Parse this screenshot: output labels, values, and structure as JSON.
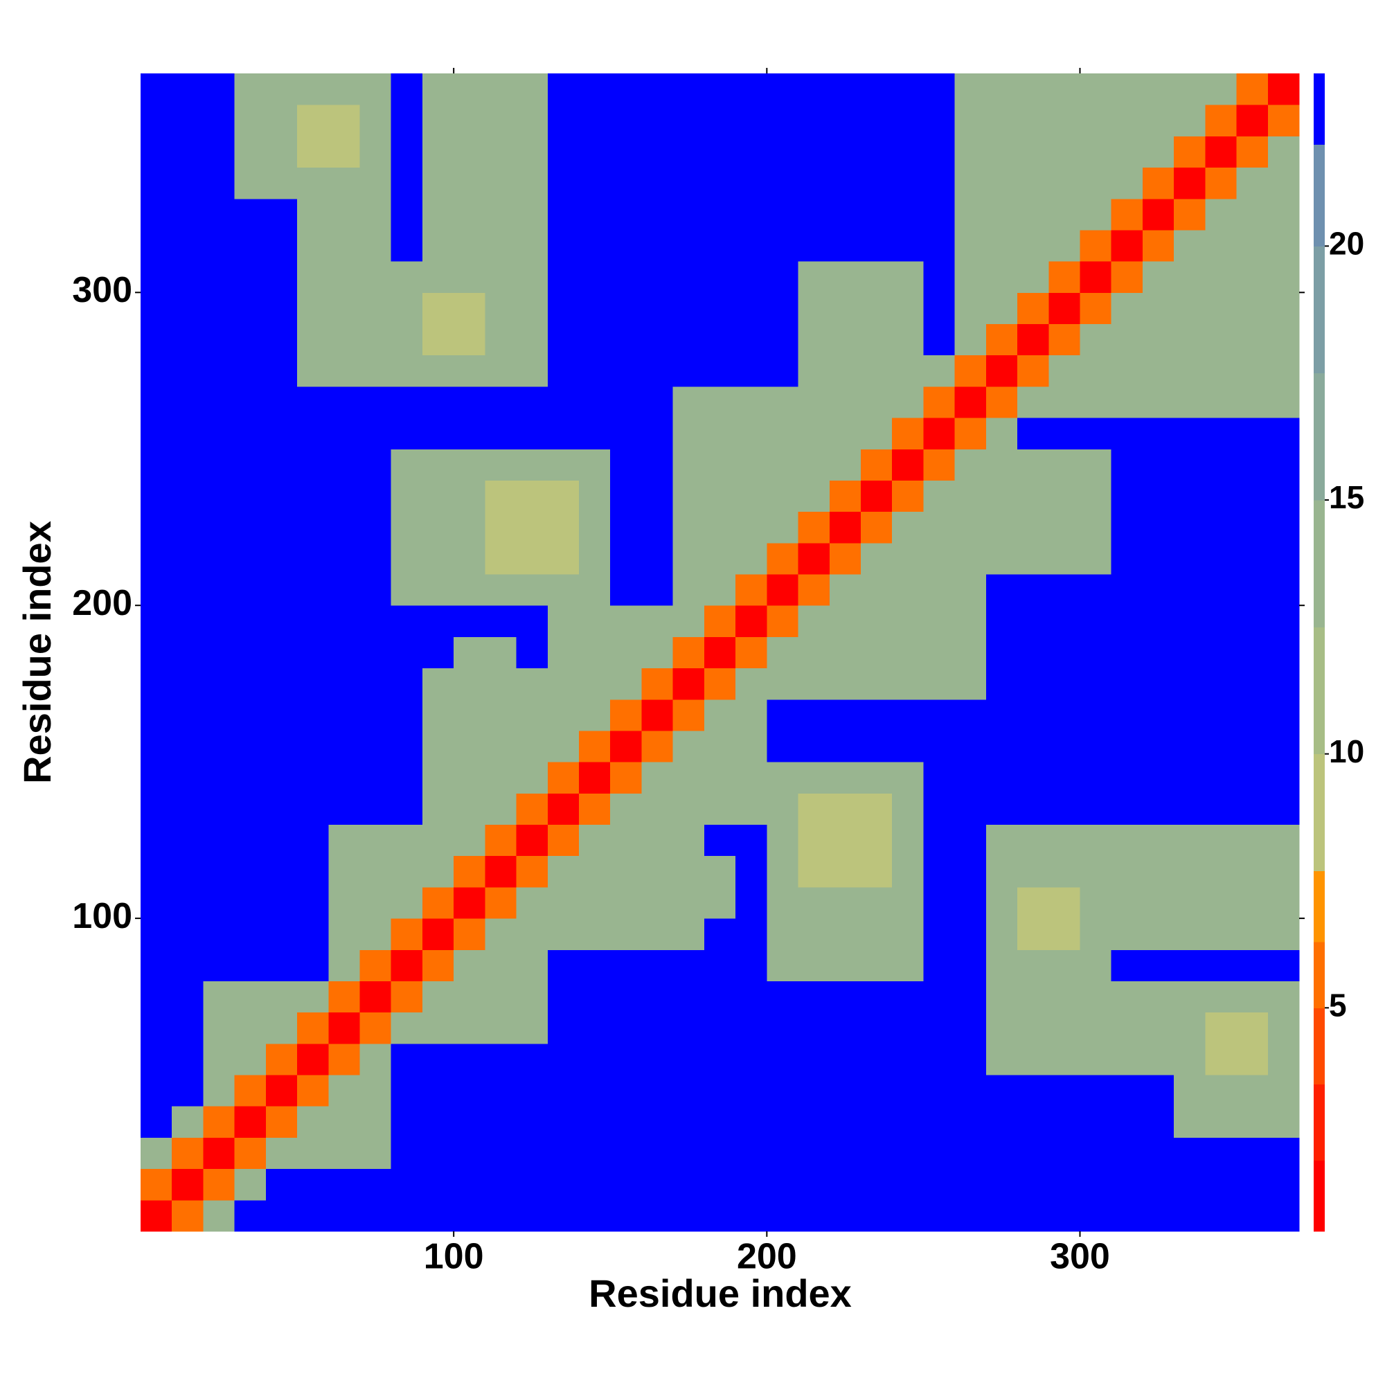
{
  "chart_data": {
    "type": "heatmap",
    "x_label": "Residue index",
    "y_label": "Residue index",
    "xlim": [
      0,
      370
    ],
    "ylim": [
      0,
      370
    ],
    "xticks": [
      100,
      200,
      300
    ],
    "yticks": [
      100,
      200,
      300
    ],
    "bin_edges": [
      0,
      10,
      20,
      30,
      40,
      50,
      60,
      70,
      80,
      90,
      100,
      110,
      120,
      130,
      140,
      150,
      160,
      170,
      180,
      190,
      200,
      210,
      220,
      230,
      240,
      250,
      260,
      270,
      280,
      290,
      300,
      310,
      320,
      330,
      340,
      350,
      360,
      370
    ],
    "z": [
      [
        1,
        6,
        13,
        23,
        23,
        23,
        23,
        23,
        23,
        23,
        23,
        23,
        23,
        23,
        23,
        23,
        23,
        23,
        23,
        23,
        23,
        23,
        23,
        23,
        23,
        23,
        23,
        23,
        23,
        23,
        23,
        23,
        23,
        23,
        23,
        23,
        23
      ],
      [
        6,
        1,
        6,
        13,
        23,
        23,
        23,
        23,
        23,
        23,
        23,
        23,
        23,
        23,
        23,
        23,
        23,
        23,
        23,
        23,
        23,
        23,
        23,
        23,
        23,
        23,
        23,
        23,
        23,
        23,
        23,
        23,
        23,
        23,
        23,
        23,
        23
      ],
      [
        13,
        6,
        1,
        6,
        13,
        13,
        13,
        13,
        23,
        23,
        23,
        23,
        23,
        23,
        23,
        23,
        23,
        23,
        23,
        23,
        23,
        23,
        23,
        23,
        23,
        23,
        23,
        23,
        23,
        23,
        23,
        23,
        23,
        23,
        23,
        23,
        23
      ],
      [
        23,
        13,
        6,
        1,
        6,
        13,
        13,
        13,
        23,
        23,
        23,
        23,
        23,
        23,
        23,
        23,
        23,
        23,
        23,
        23,
        23,
        23,
        23,
        23,
        23,
        23,
        23,
        23,
        23,
        23,
        23,
        23,
        23,
        13,
        13,
        13,
        13
      ],
      [
        23,
        23,
        13,
        6,
        1,
        6,
        13,
        13,
        23,
        23,
        23,
        23,
        23,
        23,
        23,
        23,
        23,
        23,
        23,
        23,
        23,
        23,
        23,
        23,
        23,
        23,
        23,
        23,
        23,
        23,
        23,
        23,
        23,
        13,
        13,
        13,
        13
      ],
      [
        23,
        23,
        13,
        13,
        6,
        1,
        6,
        13,
        23,
        23,
        23,
        23,
        23,
        23,
        23,
        23,
        23,
        23,
        23,
        23,
        23,
        23,
        23,
        23,
        23,
        23,
        23,
        13,
        13,
        13,
        13,
        13,
        13,
        13,
        9,
        9,
        13
      ],
      [
        23,
        23,
        13,
        13,
        13,
        6,
        1,
        6,
        13,
        13,
        13,
        13,
        13,
        23,
        23,
        23,
        23,
        23,
        23,
        23,
        23,
        23,
        23,
        23,
        23,
        23,
        23,
        13,
        13,
        13,
        13,
        13,
        13,
        13,
        9,
        9,
        13
      ],
      [
        23,
        23,
        13,
        13,
        13,
        13,
        6,
        1,
        6,
        13,
        13,
        13,
        13,
        23,
        23,
        23,
        23,
        23,
        23,
        23,
        23,
        23,
        23,
        23,
        23,
        23,
        23,
        13,
        13,
        13,
        13,
        13,
        13,
        13,
        13,
        13,
        13
      ],
      [
        23,
        23,
        23,
        23,
        23,
        23,
        13,
        6,
        1,
        6,
        13,
        13,
        13,
        23,
        23,
        23,
        23,
        23,
        23,
        23,
        13,
        13,
        13,
        13,
        13,
        23,
        23,
        13,
        13,
        13,
        13,
        23,
        23,
        23,
        23,
        23,
        23
      ],
      [
        23,
        23,
        23,
        23,
        23,
        23,
        13,
        13,
        6,
        1,
        6,
        13,
        13,
        13,
        13,
        13,
        13,
        13,
        23,
        23,
        13,
        13,
        13,
        13,
        13,
        23,
        23,
        13,
        9,
        9,
        13,
        13,
        13,
        13,
        13,
        13,
        13
      ],
      [
        23,
        23,
        23,
        23,
        23,
        23,
        13,
        13,
        13,
        6,
        1,
        6,
        13,
        13,
        13,
        13,
        13,
        13,
        13,
        23,
        13,
        13,
        13,
        13,
        13,
        23,
        23,
        13,
        9,
        9,
        13,
        13,
        13,
        13,
        13,
        13,
        13
      ],
      [
        23,
        23,
        23,
        23,
        23,
        23,
        13,
        13,
        13,
        13,
        6,
        1,
        6,
        13,
        13,
        13,
        13,
        13,
        13,
        23,
        13,
        9,
        9,
        9,
        13,
        23,
        23,
        13,
        13,
        13,
        13,
        13,
        13,
        13,
        13,
        13,
        13
      ],
      [
        23,
        23,
        23,
        23,
        23,
        23,
        13,
        13,
        13,
        13,
        13,
        6,
        1,
        6,
        13,
        13,
        13,
        13,
        23,
        23,
        13,
        9,
        9,
        9,
        13,
        23,
        23,
        13,
        13,
        13,
        13,
        13,
        13,
        13,
        13,
        13,
        13
      ],
      [
        23,
        23,
        23,
        23,
        23,
        23,
        23,
        23,
        23,
        13,
        13,
        13,
        6,
        1,
        6,
        13,
        13,
        13,
        13,
        13,
        13,
        9,
        9,
        9,
        13,
        23,
        23,
        23,
        23,
        23,
        23,
        23,
        23,
        23,
        23,
        23,
        23
      ],
      [
        23,
        23,
        23,
        23,
        23,
        23,
        23,
        23,
        23,
        13,
        13,
        13,
        13,
        6,
        1,
        6,
        13,
        13,
        13,
        13,
        13,
        13,
        13,
        13,
        13,
        23,
        23,
        23,
        23,
        23,
        23,
        23,
        23,
        23,
        23,
        23,
        23
      ],
      [
        23,
        23,
        23,
        23,
        23,
        23,
        23,
        23,
        23,
        13,
        13,
        13,
        13,
        13,
        6,
        1,
        6,
        13,
        13,
        13,
        23,
        23,
        23,
        23,
        23,
        23,
        23,
        23,
        23,
        23,
        23,
        23,
        23,
        23,
        23,
        23,
        23
      ],
      [
        23,
        23,
        23,
        23,
        23,
        23,
        23,
        23,
        23,
        13,
        13,
        13,
        13,
        13,
        13,
        6,
        1,
        6,
        13,
        13,
        23,
        23,
        23,
        23,
        23,
        23,
        23,
        23,
        23,
        23,
        23,
        23,
        23,
        23,
        23,
        23,
        23
      ],
      [
        23,
        23,
        23,
        23,
        23,
        23,
        23,
        23,
        23,
        13,
        13,
        13,
        13,
        13,
        13,
        13,
        6,
        1,
        6,
        13,
        13,
        13,
        13,
        13,
        13,
        13,
        13,
        23,
        23,
        23,
        23,
        23,
        23,
        23,
        23,
        23,
        23
      ],
      [
        23,
        23,
        23,
        23,
        23,
        23,
        23,
        23,
        23,
        23,
        13,
        13,
        23,
        13,
        13,
        13,
        13,
        6,
        1,
        6,
        13,
        13,
        13,
        13,
        13,
        13,
        13,
        23,
        23,
        23,
        23,
        23,
        23,
        23,
        23,
        23,
        23
      ],
      [
        23,
        23,
        23,
        23,
        23,
        23,
        23,
        23,
        23,
        23,
        23,
        23,
        23,
        13,
        13,
        13,
        13,
        13,
        6,
        1,
        6,
        13,
        13,
        13,
        13,
        13,
        13,
        23,
        23,
        23,
        23,
        23,
        23,
        23,
        23,
        23,
        23
      ],
      [
        23,
        23,
        23,
        23,
        23,
        23,
        23,
        23,
        13,
        13,
        13,
        13,
        13,
        13,
        13,
        23,
        23,
        13,
        13,
        6,
        1,
        6,
        13,
        13,
        13,
        13,
        13,
        23,
        23,
        23,
        23,
        23,
        23,
        23,
        23,
        23,
        23
      ],
      [
        23,
        23,
        23,
        23,
        23,
        23,
        23,
        23,
        13,
        13,
        13,
        9,
        9,
        9,
        13,
        23,
        23,
        13,
        13,
        13,
        6,
        1,
        6,
        13,
        13,
        13,
        13,
        13,
        13,
        13,
        13,
        23,
        23,
        23,
        23,
        23,
        23
      ],
      [
        23,
        23,
        23,
        23,
        23,
        23,
        23,
        23,
        13,
        13,
        13,
        9,
        9,
        9,
        13,
        23,
        23,
        13,
        13,
        13,
        13,
        6,
        1,
        6,
        13,
        13,
        13,
        13,
        13,
        13,
        13,
        23,
        23,
        23,
        23,
        23,
        23
      ],
      [
        23,
        23,
        23,
        23,
        23,
        23,
        23,
        23,
        13,
        13,
        13,
        9,
        9,
        9,
        13,
        23,
        23,
        13,
        13,
        13,
        13,
        13,
        6,
        1,
        6,
        13,
        13,
        13,
        13,
        13,
        13,
        23,
        23,
        23,
        23,
        23,
        23
      ],
      [
        23,
        23,
        23,
        23,
        23,
        23,
        23,
        23,
        13,
        13,
        13,
        13,
        13,
        13,
        13,
        23,
        23,
        13,
        13,
        13,
        13,
        13,
        13,
        6,
        1,
        6,
        13,
        13,
        13,
        13,
        13,
        23,
        23,
        23,
        23,
        23,
        23
      ],
      [
        23,
        23,
        23,
        23,
        23,
        23,
        23,
        23,
        23,
        23,
        23,
        23,
        23,
        23,
        23,
        23,
        23,
        13,
        13,
        13,
        13,
        13,
        13,
        13,
        6,
        1,
        6,
        13,
        23,
        23,
        23,
        23,
        23,
        23,
        23,
        23,
        23
      ],
      [
        23,
        23,
        23,
        23,
        23,
        23,
        23,
        23,
        23,
        23,
        23,
        23,
        23,
        23,
        23,
        23,
        23,
        13,
        13,
        13,
        13,
        13,
        13,
        13,
        13,
        6,
        1,
        6,
        13,
        13,
        13,
        13,
        13,
        13,
        13,
        13,
        13
      ],
      [
        23,
        23,
        23,
        23,
        23,
        13,
        13,
        13,
        13,
        13,
        13,
        13,
        13,
        23,
        23,
        23,
        23,
        23,
        23,
        23,
        23,
        13,
        13,
        13,
        13,
        13,
        6,
        1,
        6,
        13,
        13,
        13,
        13,
        13,
        13,
        13,
        13
      ],
      [
        23,
        23,
        23,
        23,
        23,
        13,
        13,
        13,
        13,
        9,
        9,
        13,
        13,
        23,
        23,
        23,
        23,
        23,
        23,
        23,
        23,
        13,
        13,
        13,
        13,
        23,
        13,
        6,
        1,
        6,
        13,
        13,
        13,
        13,
        13,
        13,
        13
      ],
      [
        23,
        23,
        23,
        23,
        23,
        13,
        13,
        13,
        13,
        9,
        9,
        13,
        13,
        23,
        23,
        23,
        23,
        23,
        23,
        23,
        23,
        13,
        13,
        13,
        13,
        23,
        13,
        13,
        6,
        1,
        6,
        13,
        13,
        13,
        13,
        13,
        13
      ],
      [
        23,
        23,
        23,
        23,
        23,
        13,
        13,
        13,
        13,
        13,
        13,
        13,
        13,
        23,
        23,
        23,
        23,
        23,
        23,
        23,
        23,
        13,
        13,
        13,
        13,
        23,
        13,
        13,
        13,
        6,
        1,
        6,
        13,
        13,
        13,
        13,
        13
      ],
      [
        23,
        23,
        23,
        23,
        23,
        13,
        13,
        13,
        23,
        13,
        13,
        13,
        13,
        23,
        23,
        23,
        23,
        23,
        23,
        23,
        23,
        23,
        23,
        23,
        23,
        23,
        13,
        13,
        13,
        13,
        6,
        1,
        6,
        13,
        13,
        13,
        13
      ],
      [
        23,
        23,
        23,
        23,
        23,
        13,
        13,
        13,
        23,
        13,
        13,
        13,
        13,
        23,
        23,
        23,
        23,
        23,
        23,
        23,
        23,
        23,
        23,
        23,
        23,
        23,
        13,
        13,
        13,
        13,
        13,
        6,
        1,
        6,
        13,
        13,
        13
      ],
      [
        23,
        23,
        23,
        13,
        13,
        13,
        13,
        13,
        23,
        13,
        13,
        13,
        13,
        23,
        23,
        23,
        23,
        23,
        23,
        23,
        23,
        23,
        23,
        23,
        23,
        23,
        13,
        13,
        13,
        13,
        13,
        13,
        6,
        1,
        6,
        13,
        13
      ],
      [
        23,
        23,
        23,
        13,
        13,
        9,
        9,
        13,
        23,
        13,
        13,
        13,
        13,
        23,
        23,
        23,
        23,
        23,
        23,
        23,
        23,
        23,
        23,
        23,
        23,
        23,
        13,
        13,
        13,
        13,
        13,
        13,
        13,
        6,
        1,
        6,
        13
      ],
      [
        23,
        23,
        23,
        13,
        13,
        9,
        9,
        13,
        23,
        13,
        13,
        13,
        13,
        23,
        23,
        23,
        23,
        23,
        23,
        23,
        23,
        23,
        23,
        23,
        23,
        23,
        13,
        13,
        13,
        13,
        13,
        13,
        13,
        13,
        6,
        1,
        6
      ],
      [
        23,
        23,
        23,
        13,
        13,
        13,
        13,
        13,
        23,
        13,
        13,
        13,
        13,
        23,
        23,
        23,
        23,
        23,
        23,
        23,
        23,
        23,
        23,
        23,
        23,
        23,
        13,
        13,
        13,
        13,
        13,
        13,
        13,
        13,
        13,
        6,
        1
      ]
    ],
    "colorbar": {
      "levels": [
        0.6,
        2,
        3.5,
        5,
        6.3,
        7.7,
        10,
        12.5,
        15,
        17.5,
        20,
        22,
        23.4
      ],
      "colors": [
        "#ff0000",
        "#ff2000",
        "#ff4a00",
        "#ff7000",
        "#ff9400",
        "#bcc47c",
        "#a7bd86",
        "#99b590",
        "#8aaa9b",
        "#7c9ea5",
        "#6e90af",
        "#0000ff"
      ],
      "ticks": [
        5,
        10,
        15,
        20
      ]
    }
  }
}
